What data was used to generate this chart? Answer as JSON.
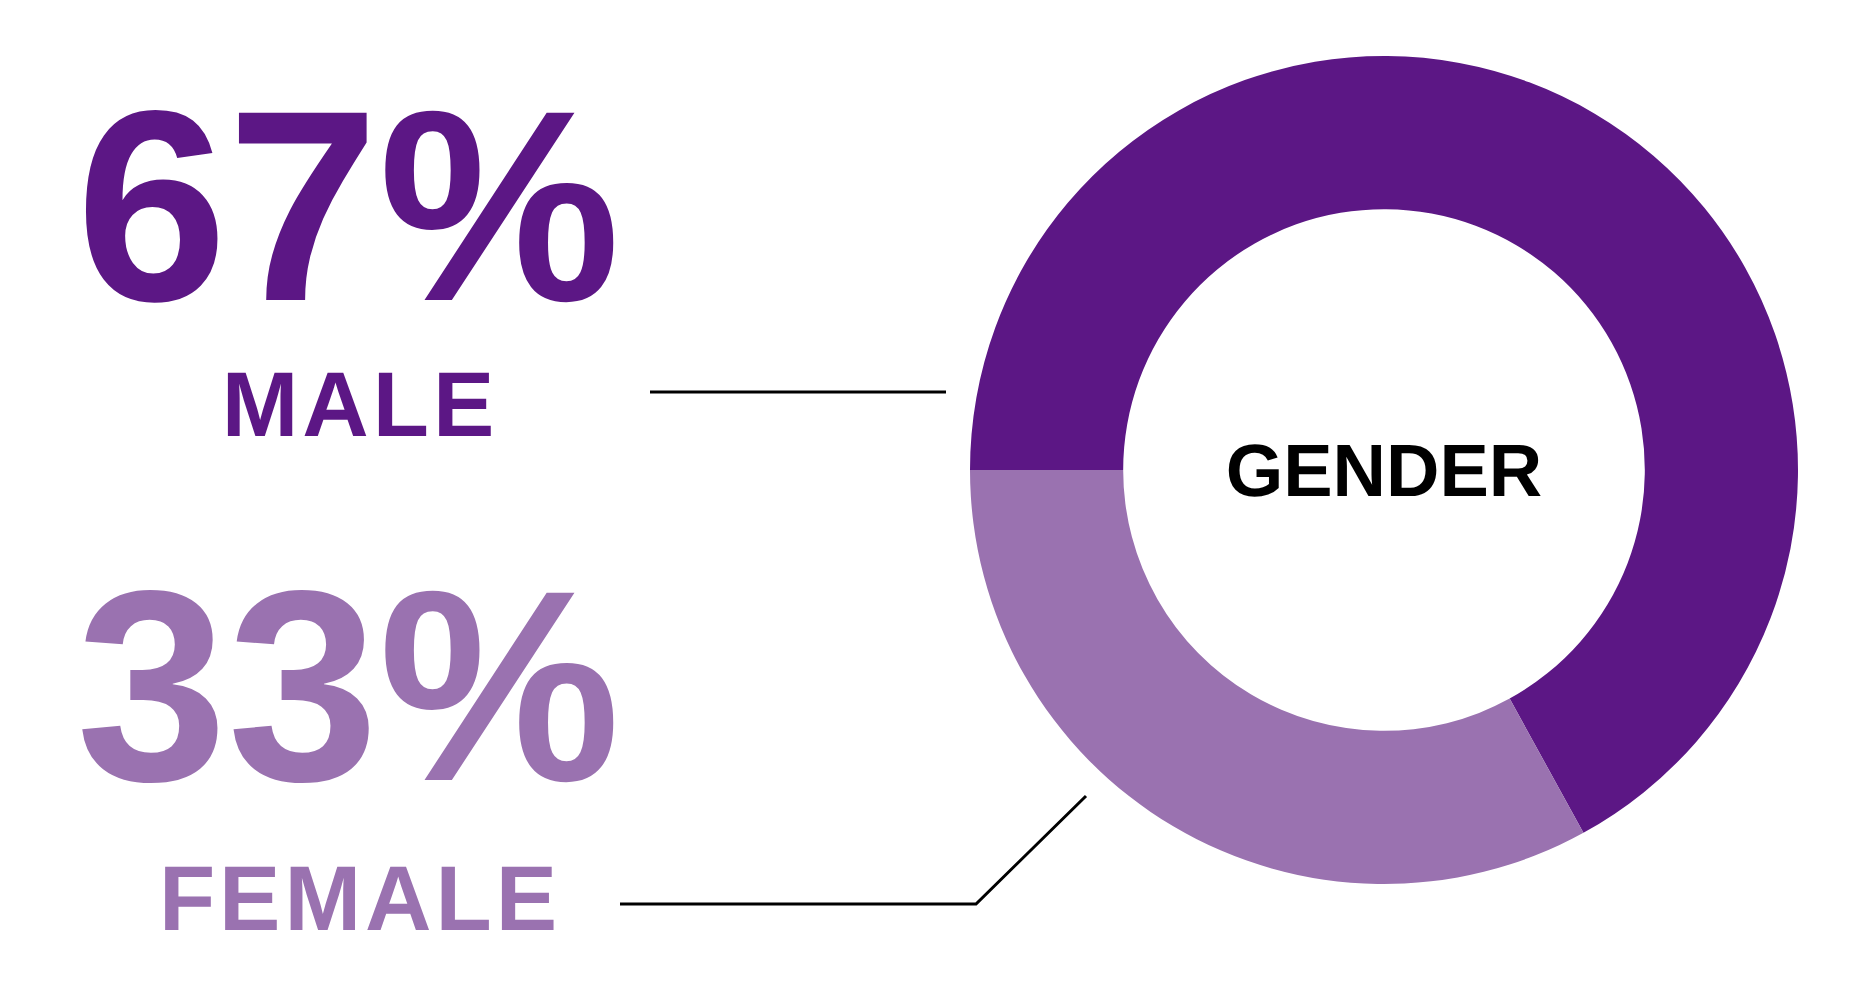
{
  "chart_data": {
    "type": "donut",
    "title": "GENDER",
    "categories": [
      "MALE",
      "FEMALE"
    ],
    "values": [
      67,
      33
    ],
    "value_labels": [
      "67%",
      "33%"
    ],
    "colors": [
      "#5c1785",
      "#9a72b0"
    ]
  }
}
